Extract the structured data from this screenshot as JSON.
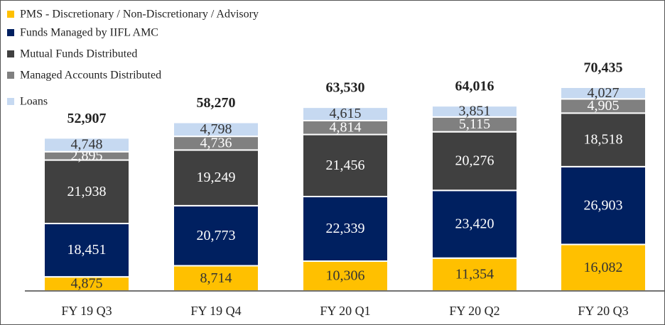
{
  "chart_data": {
    "type": "stacked_bar",
    "categories": [
      "FY 19 Q3",
      "FY 19 Q4",
      "FY 20 Q1",
      "FY 20 Q2",
      "FY 20 Q3"
    ],
    "series": [
      {
        "name": "PMS - Discretionary / Non-Discretionary / Advisory",
        "color": "#FFC000",
        "values": [
          4875,
          8714,
          10306,
          11354,
          16082
        ],
        "value_labels": [
          "4,875",
          "8,714",
          "10,306",
          "11,354",
          "16,082"
        ]
      },
      {
        "name": "Funds Managed by IIFL AMC",
        "color": "#002060",
        "values": [
          18451,
          20773,
          22339,
          23420,
          26903
        ],
        "value_labels": [
          "18,451",
          "20,773",
          "22,339",
          "23,420",
          "26,903"
        ]
      },
      {
        "name": "Mutual Funds Distributed",
        "color": "#404040",
        "values": [
          21938,
          19249,
          21456,
          20276,
          18518
        ],
        "value_labels": [
          "21,938",
          "19,249",
          "21,456",
          "20,276",
          "18,518"
        ]
      },
      {
        "name": "Managed Accounts Distributed",
        "color": "#808080",
        "values": [
          2895,
          4736,
          4814,
          5115,
          4905
        ],
        "value_labels": [
          "2,895",
          "4,736",
          "4,814",
          "5,115",
          "4,905"
        ]
      },
      {
        "name": "Loans",
        "color": "#C6D9F1",
        "values": [
          4748,
          4798,
          4615,
          3851,
          4027
        ],
        "value_labels": [
          "4,748",
          "4,798",
          "4,615",
          "3,851",
          "4,027"
        ]
      }
    ],
    "totals": [
      52907,
      58270,
      63530,
      64016,
      70435
    ],
    "total_labels": [
      "52,907",
      "58,270",
      "63,530",
      "64,016",
      "70,435"
    ]
  }
}
